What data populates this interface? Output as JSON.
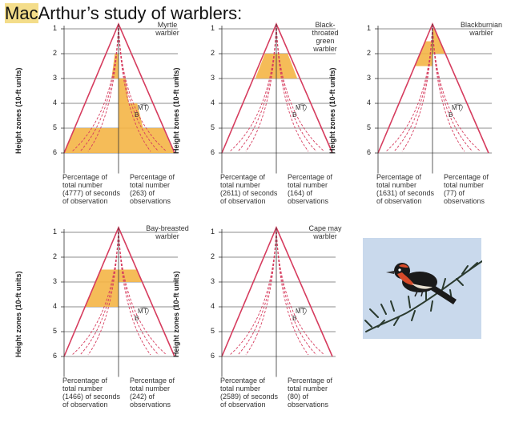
{
  "title_prefix": "Mac",
  "title_rest": "Arthur’s study of warblers:",
  "y_axis_label": "Height zones (10-ft units)",
  "zones": [
    "1",
    "2",
    "3",
    "4",
    "5",
    "6"
  ],
  "marker_labels": {
    "m": "M",
    "t": "T",
    "b": "B"
  },
  "colors": {
    "fill": "#f4b546",
    "triangle": "#d63c5e",
    "dashed": "#d63c5e",
    "line": "#666666"
  },
  "panels": [
    {
      "name": "Myrtle warbler",
      "name_lines": [
        "Myrtle",
        "warbler"
      ],
      "left_caption": [
        "Percentage of",
        "total number",
        "(4777) of seconds",
        "of observation"
      ],
      "right_caption": [
        "Percentage of",
        "total number",
        "(263) of",
        "observations"
      ],
      "seconds_fill": [
        [
          2.0,
          3.0,
          0.3
        ],
        [
          5.0,
          6.0,
          1.0
        ]
      ],
      "obs_fill": [
        [
          3.0,
          4.0,
          0.3
        ],
        [
          4.0,
          5.0,
          0.55
        ],
        [
          5.0,
          6.0,
          1.0
        ]
      ]
    },
    {
      "name": "Black-throated green warbler",
      "name_lines": [
        "Black-",
        "throated",
        "green",
        "warbler"
      ],
      "left_caption": [
        "Percentage of",
        "total number",
        "(2611) of seconds",
        "of observation"
      ],
      "right_caption": [
        "Percentage of",
        "total number",
        "(164) of",
        "observations"
      ],
      "seconds_fill": [
        [
          2.0,
          3.0,
          0.9
        ]
      ],
      "obs_fill": [
        [
          2.0,
          3.0,
          0.9
        ]
      ]
    },
    {
      "name": "Blackburnian warbler",
      "name_lines": [
        "Blackburnian",
        "warbler"
      ],
      "left_caption": [
        "Percentage of",
        "total number",
        "(1631) of seconds",
        "of observation"
      ],
      "right_caption": [
        "Percentage of",
        "total number",
        "(77) of",
        "observations"
      ],
      "seconds_fill": [
        [
          1.5,
          2.5,
          1.0
        ]
      ],
      "obs_fill": [
        [
          1.0,
          2.0,
          1.0
        ]
      ]
    },
    {
      "name": "Bay-breasted warbler",
      "name_lines": [
        "Bay-breasted",
        "warbler"
      ],
      "left_caption": [
        "Percentage of",
        "total number",
        "(1466) of seconds",
        "of observation"
      ],
      "right_caption": [
        "Percentage of",
        "total number",
        "(242) of",
        "observations"
      ],
      "seconds_fill": [
        [
          2.5,
          3.0,
          1.0
        ],
        [
          3.0,
          4.0,
          1.0
        ]
      ],
      "obs_fill": [
        [
          2.5,
          3.0,
          1.0
        ]
      ]
    },
    {
      "name": "Cape may warbler",
      "name_lines": [
        "Cape may",
        "warbler"
      ],
      "left_caption": [
        "Percentage of",
        "total number",
        "(2589) of seconds",
        "of observation"
      ],
      "right_caption": [
        "Percentage of",
        "total number",
        "(80) of",
        "observations"
      ],
      "seconds_fill": [],
      "obs_fill": []
    }
  ]
}
